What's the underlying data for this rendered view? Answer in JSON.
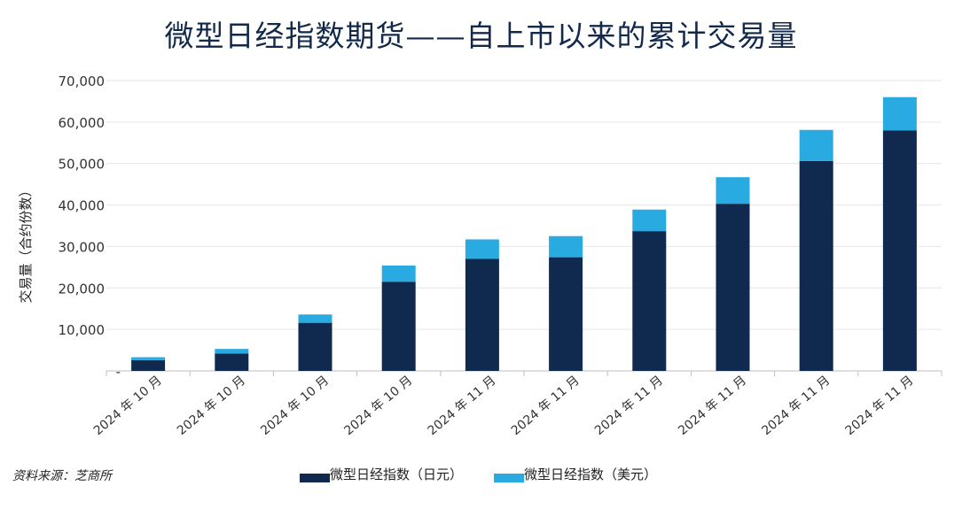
{
  "colors": {
    "jpy": "#0f2a4e",
    "usd": "#29abe2",
    "grid": "#e6e6e6",
    "axis_text": "#333333"
  },
  "source_note": "资料来源：芝商所",
  "chart_data": {
    "type": "bar",
    "stacked": true,
    "title": "微型日经指数期货——自上市以来的累计交易量",
    "xlabel": "",
    "ylabel": "交易量（合约份数）",
    "ylim": [
      0,
      70000
    ],
    "yticks": [
      0,
      10000,
      20000,
      30000,
      40000,
      50000,
      60000,
      70000
    ],
    "ytick_labels": [
      "-",
      "10,000",
      "20,000",
      "30,000",
      "40,000",
      "50,000",
      "60,000",
      "70,000"
    ],
    "categories": [
      "2024 年 10 月",
      "2024 年 10 月",
      "2024 年 10 月",
      "2024 年 10 月",
      "2024 年 11 月",
      "2024 年 11 月",
      "2024 年 11 月",
      "2024 年 11 月",
      "2024 年 11 月",
      "2024 年 11 月"
    ],
    "series": [
      {
        "name": "微型日经指数（日元）",
        "values": [
          2600,
          4200,
          11600,
          21500,
          27000,
          27400,
          33700,
          40300,
          50600,
          58000
        ]
      },
      {
        "name": "微型日经指数（美元）",
        "values": [
          700,
          1100,
          2000,
          3900,
          4700,
          5100,
          5200,
          6400,
          7500,
          8000
        ]
      }
    ],
    "legend_position": "bottom",
    "grid": true
  }
}
